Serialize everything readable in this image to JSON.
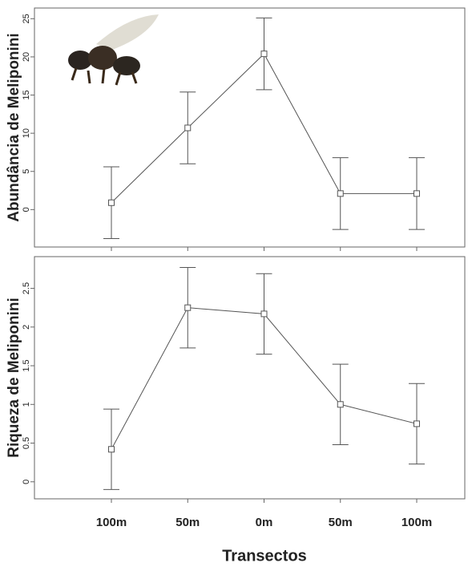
{
  "chart_data": [
    {
      "type": "line",
      "y_label": "Abundância de Meliponini",
      "series": [
        {
          "color": "#555555",
          "values": [
            0.9,
            10.7,
            20.4,
            2.1,
            2.1
          ],
          "errors": [
            4.7,
            4.7,
            4.7,
            4.7,
            4.7
          ]
        }
      ],
      "ylim": [
        -4.9,
        26.4
      ],
      "yticks": [
        0,
        5,
        10,
        15,
        20,
        25
      ]
    },
    {
      "type": "line",
      "y_label": "Riqueza de Meliponini",
      "x_label": "Transectos",
      "categories": [
        "100m",
        "50m",
        "0m",
        "50m",
        "100m"
      ],
      "series": [
        {
          "color": "#555555",
          "values": [
            0.42,
            2.25,
            2.17,
            1.0,
            0.75
          ],
          "errors": [
            0.52,
            0.52,
            0.52,
            0.52,
            0.52
          ]
        }
      ],
      "ylim": [
        -0.22,
        2.91
      ],
      "yticks": [
        0,
        0.5,
        1,
        1.5,
        2,
        2.5
      ]
    }
  ]
}
